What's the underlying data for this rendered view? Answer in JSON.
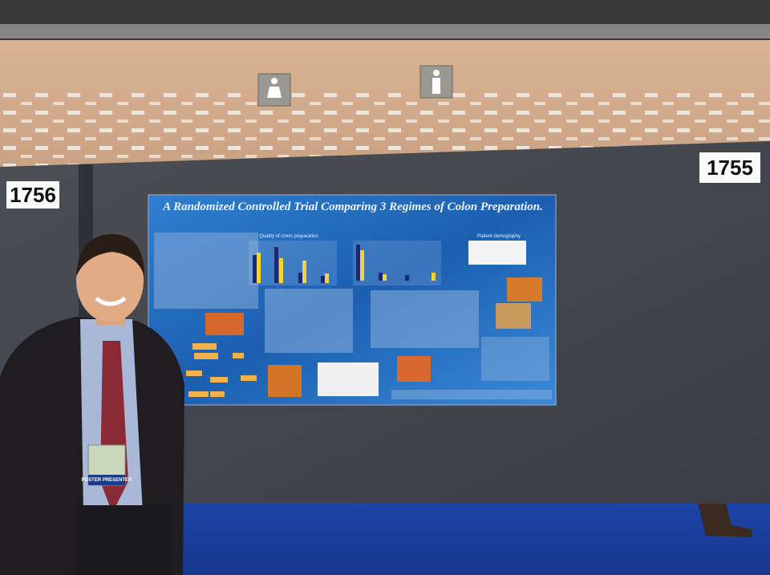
{
  "signs": {
    "left_booth": "1756",
    "right_booth": "1755"
  },
  "poster": {
    "title": "A Randomized Controlled Trial Comparing 3 Regimes of Colon Preparation.",
    "chart_heading": "Quality of colon preparation",
    "table_heading": "Patient demography"
  },
  "badge": {
    "role": "POSTER PRESENTER"
  }
}
